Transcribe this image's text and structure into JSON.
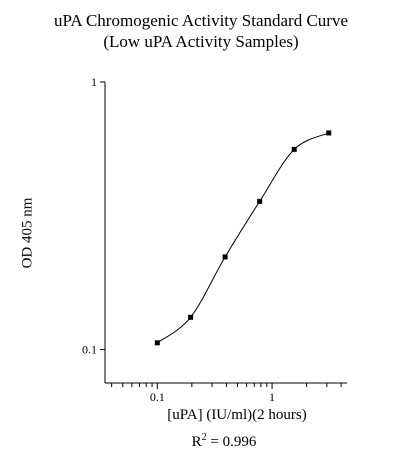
{
  "chart_data": {
    "type": "scatter",
    "title": [
      "uPA Chromogenic Activity Standard Curve",
      "(Low uPA Activity Samples)"
    ],
    "xlabel": "[uPA] (IU/ml)(2 hours)",
    "ylabel": "OD 405 nm",
    "x_scale": "log",
    "y_scale": "log",
    "xlim": [
      0.035,
      4.5
    ],
    "ylim": [
      0.075,
      1
    ],
    "x_tick_labels": [
      "0.1",
      "1"
    ],
    "y_tick_labels": [
      "0.1",
      "1"
    ],
    "grid": false,
    "fit_curve": "smooth",
    "annotation": {
      "text": "R",
      "superscript": "2",
      "value": " = 0.996"
    },
    "series": [
      {
        "x": [
          0.1,
          0.195,
          0.39,
          0.78,
          1.56,
          3.12
        ],
        "y": [
          0.106,
          0.132,
          0.222,
          0.358,
          0.56,
          0.645
        ]
      }
    ]
  }
}
